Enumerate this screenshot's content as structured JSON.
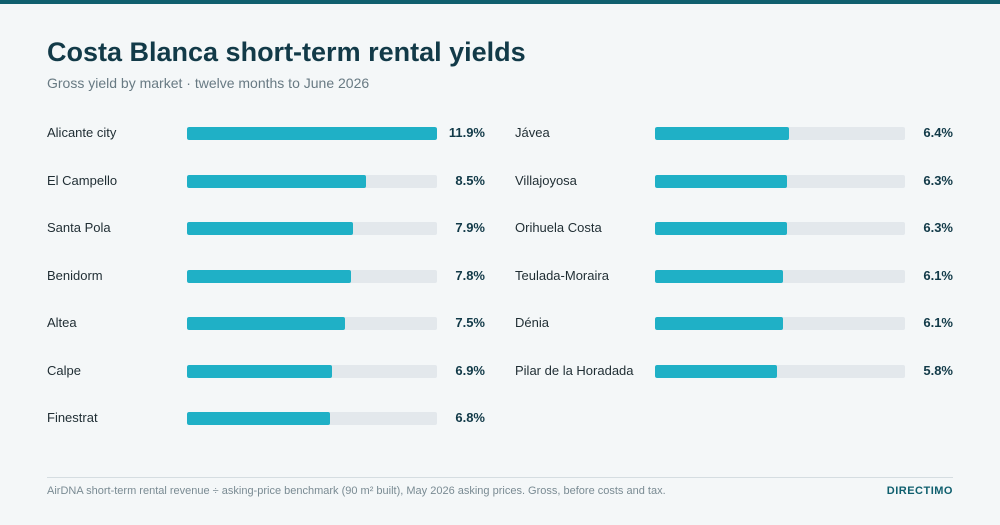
{
  "colors": {
    "accent": "#1fb0c6",
    "track": "#e3e8ec",
    "title": "#123a48",
    "brand": "#0f5f6e"
  },
  "footer": {
    "source": "AirDNA short-term rental revenue ÷ asking-price benchmark (90 m² built), May 2026 asking prices. Gross, before costs and tax.",
    "brand": "DIRECTIMO"
  },
  "chart_data": {
    "type": "bar",
    "orientation": "horizontal",
    "title": "Costa Blanca short-term rental yields",
    "subtitle": "Gross yield by market · twelve months to June 2026",
    "unit": "%",
    "xlim": [
      0,
      11.9
    ],
    "categories": [
      "Alicante city",
      "El Campello",
      "Santa Pola",
      "Benidorm",
      "Altea",
      "Calpe",
      "Finestrat",
      "Jávea",
      "Villajoyosa",
      "Orihuela Costa",
      "Teulada-Moraira",
      "Dénia",
      "Pilar de la Horadada"
    ],
    "values": [
      11.9,
      8.5,
      7.9,
      7.8,
      7.5,
      6.9,
      6.8,
      6.4,
      6.3,
      6.3,
      6.1,
      6.1,
      5.8
    ],
    "labels": [
      "11.9%",
      "8.5%",
      "7.9%",
      "7.8%",
      "7.5%",
      "6.9%",
      "6.8%",
      "6.4%",
      "6.3%",
      "6.3%",
      "6.1%",
      "6.1%",
      "5.8%"
    ]
  }
}
